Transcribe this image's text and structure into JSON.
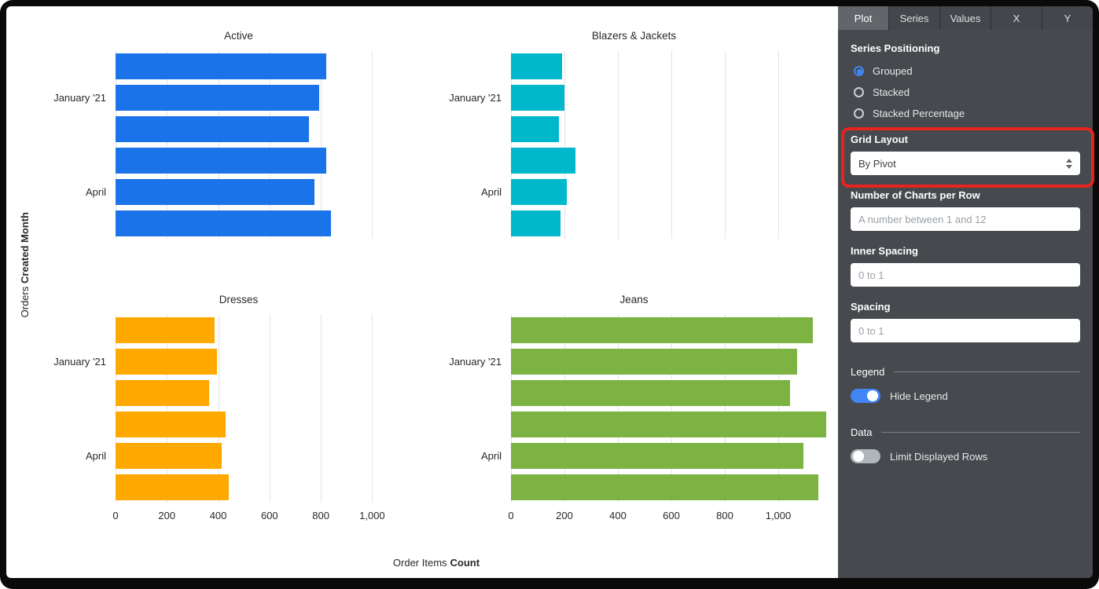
{
  "axes": {
    "y_title_prefix": "Orders",
    "y_title_field": "Created Month",
    "x_title_prefix": "Order Items",
    "x_title_field": "Count"
  },
  "chart_data": [
    {
      "type": "bar",
      "orientation": "horizontal",
      "title": "Active",
      "color": "#1A73E8",
      "categories": [
        "",
        "January '21",
        "",
        "",
        "April",
        ""
      ],
      "values": [
        820,
        795,
        755,
        820,
        775,
        840
      ],
      "xlim": [
        0,
        1250
      ],
      "xticks": [
        0,
        200,
        400,
        600,
        800,
        1000
      ],
      "xtick_labels": [
        "0",
        "200",
        "400",
        "600",
        "800",
        "1,000"
      ],
      "show_xtick_labels": false,
      "grid": true
    },
    {
      "type": "bar",
      "orientation": "horizontal",
      "title": "Blazers & Jackets",
      "color": "#00B8CB",
      "categories": [
        "",
        "January '21",
        "",
        "",
        "April",
        ""
      ],
      "values": [
        190,
        200,
        180,
        240,
        210,
        185
      ],
      "xlim": [
        0,
        1200
      ],
      "xticks": [
        0,
        200,
        400,
        600,
        800,
        1000
      ],
      "xtick_labels": [
        "0",
        "200",
        "400",
        "600",
        "800",
        "1,000"
      ],
      "show_xtick_labels": false,
      "grid": true
    },
    {
      "type": "bar",
      "orientation": "horizontal",
      "title": "Dresses",
      "color": "#FFA800",
      "categories": [
        "",
        "January '21",
        "",
        "",
        "April",
        ""
      ],
      "values": [
        385,
        395,
        365,
        430,
        415,
        440
      ],
      "xlim": [
        0,
        1250
      ],
      "xticks": [
        0,
        200,
        400,
        600,
        800,
        1000
      ],
      "xtick_labels": [
        "0",
        "200",
        "400",
        "600",
        "800",
        "1,000"
      ],
      "show_xtick_labels": true,
      "grid": true
    },
    {
      "type": "bar",
      "orientation": "horizontal",
      "title": "Jeans",
      "color": "#7CB342",
      "categories": [
        "",
        "January '21",
        "",
        "",
        "April",
        ""
      ],
      "values": [
        1130,
        1070,
        1045,
        1180,
        1095,
        1150
      ],
      "xlim": [
        0,
        1200
      ],
      "xticks": [
        0,
        200,
        400,
        600,
        800,
        1000
      ],
      "xtick_labels": [
        "0",
        "200",
        "400",
        "600",
        "800",
        "1,000"
      ],
      "show_xtick_labels": true,
      "grid": true
    }
  ],
  "panel": {
    "tabs": [
      {
        "label": "Plot",
        "active": true
      },
      {
        "label": "Series",
        "active": false
      },
      {
        "label": "Values",
        "active": false
      },
      {
        "label": "X",
        "active": false
      },
      {
        "label": "Y",
        "active": false
      }
    ],
    "series_positioning": {
      "title": "Series Positioning",
      "options": [
        {
          "label": "Grouped",
          "selected": true
        },
        {
          "label": "Stacked",
          "selected": false
        },
        {
          "label": "Stacked Percentage",
          "selected": false
        }
      ]
    },
    "grid_layout": {
      "label": "Grid Layout",
      "value": "By Pivot"
    },
    "charts_per_row": {
      "label": "Number of Charts per Row",
      "value": "",
      "placeholder": "A number between 1 and 12"
    },
    "inner_spacing": {
      "label": "Inner Spacing",
      "value": "",
      "placeholder": "0 to 1"
    },
    "spacing": {
      "label": "Spacing",
      "value": "",
      "placeholder": "0 to 1"
    },
    "legend_section": {
      "title": "Legend",
      "toggle_label": "Hide Legend",
      "toggle_on": true
    },
    "data_section": {
      "title": "Data",
      "toggle_label": "Limit Displayed Rows",
      "toggle_on": false
    },
    "accent_color": "#4285F4"
  },
  "annotation": {
    "highlights": "Grid Layout",
    "color": "#e8241c"
  }
}
